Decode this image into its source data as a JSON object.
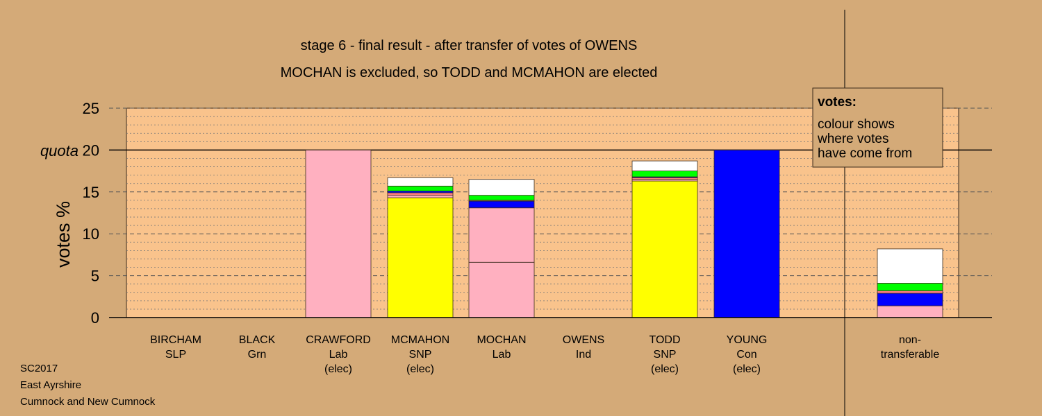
{
  "colors": {
    "background": "#d4aa78",
    "plot_bg": "#f9c38c",
    "Lab": "#ffb0c0",
    "SNP": "#ffff00",
    "Con": "#0000ff",
    "Grn": "#00ff00",
    "Ind": "#ffffff",
    "SLP": "#ff8080"
  },
  "chart_data": {
    "type": "bar",
    "stacked": true,
    "title": "stage 6 - final result - after transfer of votes of OWENS",
    "subtitle": "MOCHAN is excluded, so TODD and MCMAHON are elected",
    "ylabel": "votes %",
    "ylim": [
      0,
      25
    ],
    "yticks": [
      0,
      5,
      10,
      15,
      20,
      25
    ],
    "quota": 20,
    "quota_label": "quota",
    "grid": true,
    "candidates": [
      {
        "name": "BIRCHAM",
        "party": "SLP",
        "note": "",
        "segments": []
      },
      {
        "name": "BLACK",
        "party": "Grn",
        "note": "",
        "segments": []
      },
      {
        "name": "CRAWFORD",
        "party": "Lab",
        "note": "(elec)",
        "segments": [
          {
            "color": "Lab",
            "value": 20.0
          }
        ]
      },
      {
        "name": "MCMAHON",
        "party": "SNP",
        "note": "(elec)",
        "segments": [
          {
            "color": "SNP",
            "value": 14.3
          },
          {
            "color": "Lab",
            "value": 0.3
          },
          {
            "color": "SLP",
            "value": 0.3
          },
          {
            "color": "Con",
            "value": 0.2
          },
          {
            "color": "Grn",
            "value": 0.6
          },
          {
            "color": "Ind",
            "value": 1.0
          }
        ]
      },
      {
        "name": "MOCHAN",
        "party": "Lab",
        "note": "",
        "segments": [
          {
            "color": "Lab",
            "value": 6.6
          },
          {
            "color": "Lab",
            "value": 6.5
          },
          {
            "color": "Con",
            "value": 0.8
          },
          {
            "color": "SLP",
            "value": 0.1
          },
          {
            "color": "Grn",
            "value": 0.6
          },
          {
            "color": "Ind",
            "value": 1.9
          }
        ]
      },
      {
        "name": "OWENS",
        "party": "Ind",
        "note": "",
        "segments": []
      },
      {
        "name": "TODD",
        "party": "SNP",
        "note": "(elec)",
        "segments": [
          {
            "color": "SNP",
            "value": 16.3
          },
          {
            "color": "Lab",
            "value": 0.2
          },
          {
            "color": "SLP",
            "value": 0.2
          },
          {
            "color": "Con",
            "value": 0.1
          },
          {
            "color": "Grn",
            "value": 0.7
          },
          {
            "color": "Ind",
            "value": 1.2
          }
        ]
      },
      {
        "name": "YOUNG",
        "party": "Con",
        "note": "(elec)",
        "segments": [
          {
            "color": "Con",
            "value": 20.0
          }
        ]
      }
    ],
    "nontransferable": {
      "label_line1": "non-",
      "label_line2": "transferable",
      "segments": [
        {
          "color": "Lab",
          "value": 1.4
        },
        {
          "color": "Con",
          "value": 1.5
        },
        {
          "color": "SLP",
          "value": 0.3
        },
        {
          "color": "Grn",
          "value": 0.9
        },
        {
          "color": "Ind",
          "value": 4.1
        }
      ]
    }
  },
  "legend": {
    "title": "votes:",
    "lines": [
      "colour shows",
      "where votes",
      "have come from"
    ]
  },
  "footer": {
    "line1": "SC2017",
    "line2": "East Ayrshire",
    "line3": "Cumnock and New Cumnock"
  }
}
